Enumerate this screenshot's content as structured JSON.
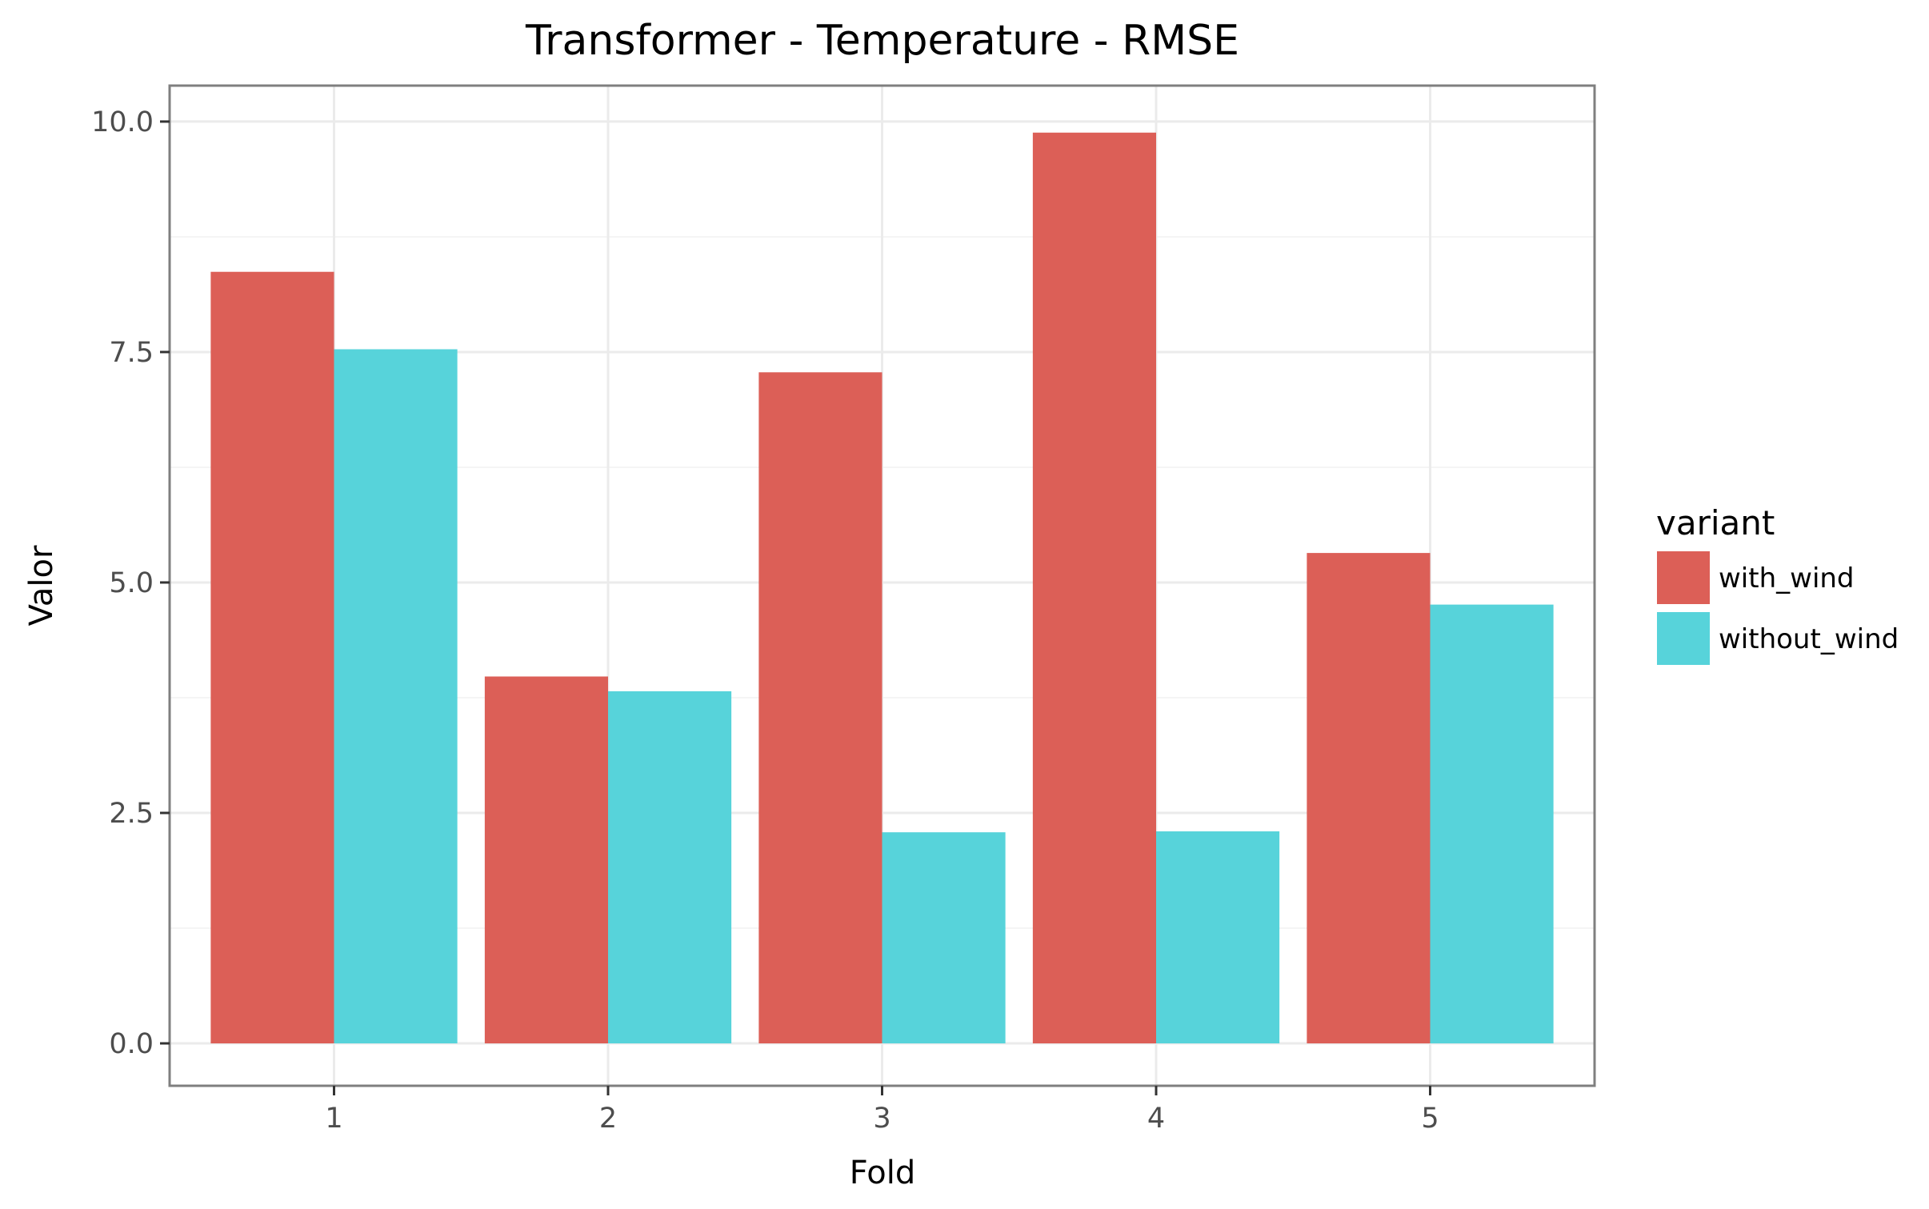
{
  "chart_data": {
    "type": "bar",
    "title": "Transformer - Temperature - RMSE",
    "xlabel": "Fold",
    "ylabel": "Valor",
    "categories": [
      "1",
      "2",
      "3",
      "4",
      "5"
    ],
    "series": [
      {
        "name": "with_wind",
        "color": "#dc5f57",
        "values": [
          8.37,
          3.98,
          7.28,
          9.88,
          5.32
        ]
      },
      {
        "name": "without_wind",
        "color": "#57d3da",
        "values": [
          7.53,
          3.82,
          2.29,
          2.3,
          4.76
        ]
      }
    ],
    "ylim": [
      -0.46,
      10.39
    ],
    "yticks": [
      0.0,
      2.5,
      5.0,
      7.5,
      10.0
    ],
    "ytick_labels": [
      "0.0",
      "2.5",
      "5.0",
      "7.5",
      "10.0"
    ],
    "grid": true,
    "legend": {
      "title": "variant",
      "position": "right"
    }
  }
}
